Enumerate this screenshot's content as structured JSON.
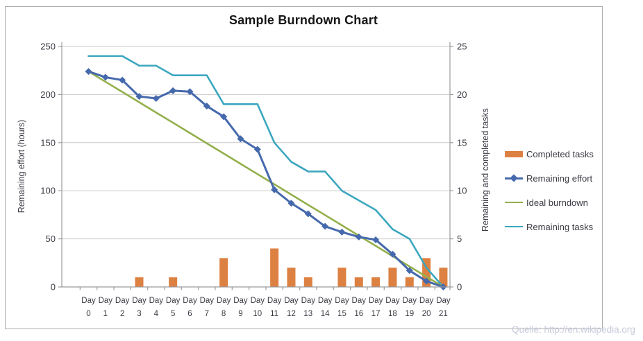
{
  "source_note": "Quelle: http://en.wikipedia.org",
  "colors": {
    "completed_tasks": "#dd8142",
    "remaining_effort": "#4569ac",
    "ideal_burndown": "#93af4b",
    "remaining_tasks": "#3ba7bf",
    "gridline": "#c9c9c9",
    "axis": "#9b9b9b",
    "tick_text": "#3a3a44",
    "title_text": "#161616",
    "frame_border": "#acacac",
    "source_text": "#c7cadb"
  },
  "chart_data": {
    "type": "bar+line combo",
    "title": "Sample Burndown Chart",
    "categories": [
      "Day 0",
      "Day 1",
      "Day 2",
      "Day 3",
      "Day 4",
      "Day 5",
      "Day 6",
      "Day 7",
      "Day 8",
      "Day 9",
      "Day 10",
      "Day 11",
      "Day 12",
      "Day 13",
      "Day 14",
      "Day 15",
      "Day 16",
      "Day 17",
      "Day 18",
      "Day 19",
      "Day 20",
      "Day 21"
    ],
    "grid": "horizontal",
    "legend_position": "right",
    "y_left": {
      "label": "Remaining effort (hours)",
      "range": [
        0,
        250
      ],
      "ticks": [
        0,
        50,
        100,
        150,
        200,
        250
      ]
    },
    "y_right": {
      "label": "Remaining and completed tasks",
      "range": [
        0,
        25
      ],
      "ticks": [
        0,
        5,
        10,
        15,
        20,
        25
      ]
    },
    "series": [
      {
        "name": "Completed tasks",
        "type": "bar",
        "axis": "right",
        "values": [
          0,
          0,
          0,
          1,
          0,
          1,
          0,
          0,
          3,
          0,
          0,
          4,
          2,
          1,
          0,
          2,
          1,
          1,
          2,
          1,
          3,
          2
        ]
      },
      {
        "name": "Remaining effort",
        "type": "line",
        "marker": "diamond",
        "axis": "left",
        "values": [
          224,
          218,
          215,
          198,
          196,
          204,
          203,
          188,
          177,
          154,
          143,
          101,
          87,
          76,
          63,
          57,
          52,
          49,
          34,
          17,
          6,
          0
        ]
      },
      {
        "name": "Ideal burndown",
        "type": "line",
        "axis": "left",
        "values": [
          224,
          213.3,
          202.7,
          192,
          181.3,
          170.7,
          160,
          149.3,
          138.7,
          128,
          117.3,
          106.7,
          96,
          85.3,
          74.7,
          64,
          53.3,
          42.7,
          32,
          21.3,
          10.7,
          0
        ]
      },
      {
        "name": "Remaining tasks",
        "type": "line",
        "axis": "right",
        "values": [
          24,
          24,
          24,
          23,
          23,
          22,
          22,
          22,
          19,
          19,
          19,
          15,
          13,
          12,
          12,
          10,
          9,
          8,
          6,
          5,
          2,
          0
        ]
      }
    ]
  }
}
